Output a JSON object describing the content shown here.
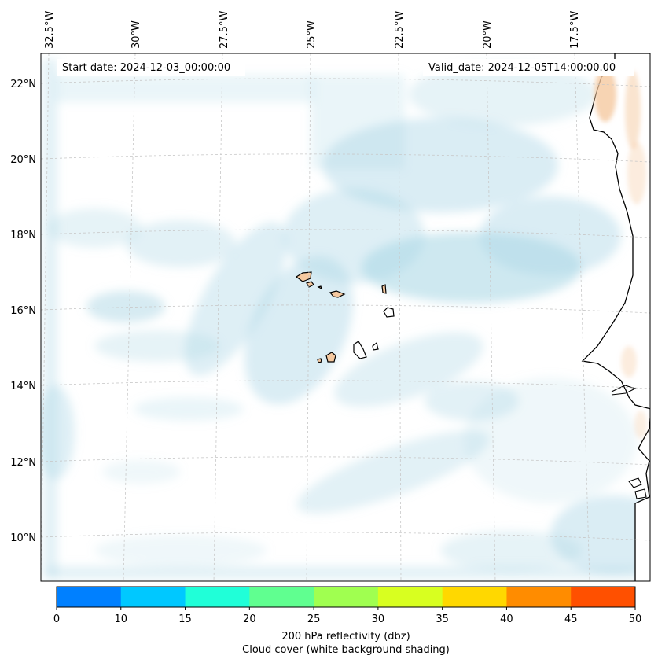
{
  "annotations": {
    "start": "Start date: 2024-12-03_00:00:00",
    "valid": "Valid_date: 2024-12-05T14:00:00.00"
  },
  "lon_labels": [
    "32.5°W",
    "30°W",
    "27.5°W",
    "25°W",
    "22.5°W",
    "20°W",
    "17.5°W"
  ],
  "lat_labels": [
    "22°N",
    "20°N",
    "18°N",
    "16°N",
    "14°N",
    "12°N",
    "10°N"
  ],
  "colorbar": {
    "ticks": [
      "0",
      "10",
      "15",
      "20",
      "25",
      "30",
      "35",
      "40",
      "45",
      "50"
    ],
    "colors": [
      "#0080ff",
      "#00c8ff",
      "#20ffd8",
      "#60ff90",
      "#a0ff50",
      "#d8ff20",
      "#ffd800",
      "#ff8c00",
      "#ff5000"
    ],
    "label_line1": "200 hPa reflectivity (dbz)",
    "label_line2": "Cloud cover (white background shading)"
  },
  "colors": {
    "cloud": "#add8e6",
    "land": "#f5c9a0",
    "coast": "#000000",
    "grid": "#cccccc"
  }
}
